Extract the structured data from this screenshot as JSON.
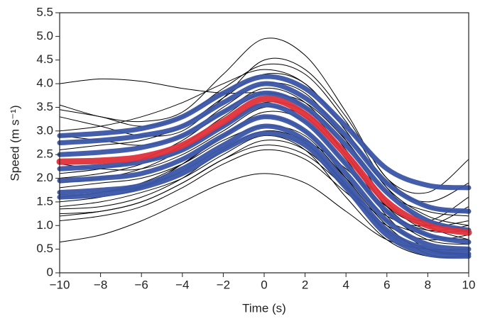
{
  "chart_data": {
    "type": "line",
    "xlabel": "Time (s)",
    "ylabel": "Speed (m s⁻¹)",
    "x": [
      -10,
      -8,
      -6,
      -4,
      -2,
      0,
      2,
      4,
      6,
      8,
      10
    ],
    "xlim": [
      -10,
      10
    ],
    "xticks": [
      {
        "value": -10,
        "label": "−10"
      },
      {
        "value": -8,
        "label": "−8"
      },
      {
        "value": -6,
        "label": "−6"
      },
      {
        "value": -4,
        "label": "−4"
      },
      {
        "value": -2,
        "label": "−2"
      },
      0,
      2,
      4,
      6,
      8,
      10
    ],
    "ylim": [
      0,
      5.5
    ],
    "yticks": [
      0,
      0.5,
      {
        "value": 1,
        "label": "1.0"
      },
      1.5,
      {
        "value": 2,
        "label": "2.0"
      },
      2.5,
      {
        "value": 3,
        "label": "3.0"
      },
      3.5,
      {
        "value": 4,
        "label": "4.0"
      },
      4.5,
      {
        "value": 5,
        "label": "5.0"
      },
      5.5
    ],
    "series": [
      {
        "color": "#000000",
        "values": [
          4.0,
          4.1,
          4.05,
          3.9,
          3.8,
          3.8,
          3.6,
          2.8,
          1.7,
          1.3,
          1.2
        ]
      },
      {
        "color": "#000000",
        "values": [
          0.65,
          0.8,
          1.1,
          1.5,
          1.9,
          2.1,
          1.9,
          1.3,
          0.7,
          0.5,
          0.5
        ]
      },
      {
        "color": "#000000",
        "values": [
          3.55,
          3.3,
          3.2,
          3.4,
          4.2,
          4.95,
          4.6,
          3.4,
          2.0,
          1.7,
          2.4
        ]
      },
      {
        "color": "#000000",
        "values": [
          1.2,
          1.3,
          1.5,
          1.9,
          2.4,
          2.8,
          2.6,
          1.8,
          0.9,
          0.5,
          0.4
        ]
      },
      {
        "color": "#000000",
        "values": [
          3.3,
          3.1,
          2.9,
          3.0,
          3.7,
          4.5,
          4.3,
          3.3,
          2.0,
          1.4,
          1.3
        ]
      },
      {
        "color": "#000000",
        "values": [
          1.5,
          1.6,
          1.8,
          2.3,
          2.9,
          3.3,
          3.0,
          2.0,
          1.0,
          0.4,
          0.35
        ]
      },
      {
        "color": "#000000",
        "values": [
          2.0,
          2.1,
          2.3,
          2.7,
          3.3,
          3.8,
          3.5,
          2.5,
          1.3,
          0.7,
          0.6
        ]
      },
      {
        "color": "#000000",
        "values": [
          1.1,
          1.2,
          1.4,
          1.8,
          2.3,
          2.6,
          2.4,
          1.7,
          1.0,
          0.7,
          0.8
        ]
      },
      {
        "color": "#000000",
        "values": [
          2.6,
          2.7,
          2.8,
          3.1,
          3.7,
          4.2,
          4.0,
          3.0,
          1.8,
          1.2,
          1.0
        ]
      },
      {
        "color": "#000000",
        "values": [
          1.8,
          1.9,
          2.0,
          2.3,
          2.8,
          3.1,
          2.9,
          2.0,
          1.2,
          1.0,
          1.4
        ]
      },
      {
        "color": "#000000",
        "values": [
          3.0,
          3.1,
          3.3,
          3.6,
          4.0,
          4.3,
          4.0,
          3.0,
          1.8,
          1.0,
          0.7
        ]
      },
      {
        "color": "#000000",
        "values": [
          1.35,
          1.4,
          1.6,
          2.0,
          2.6,
          3.0,
          2.8,
          2.2,
          1.4,
          1.1,
          1.6
        ]
      },
      {
        "color": "#000000",
        "values": [
          2.3,
          2.2,
          2.2,
          2.5,
          3.0,
          3.5,
          3.3,
          2.4,
          1.2,
          0.5,
          0.4
        ]
      },
      {
        "color": "#000000",
        "values": [
          1.4,
          1.5,
          1.7,
          2.0,
          2.5,
          2.9,
          2.6,
          1.6,
          0.7,
          0.35,
          0.35
        ]
      },
      {
        "color": "#000000",
        "values": [
          2.9,
          2.8,
          2.7,
          2.9,
          3.5,
          4.0,
          3.8,
          2.8,
          1.5,
          0.9,
          0.9
        ]
      },
      {
        "color": "#000000",
        "values": [
          1.6,
          1.7,
          1.9,
          2.3,
          2.9,
          3.4,
          3.2,
          2.3,
          1.3,
          0.9,
          1.0
        ]
      },
      {
        "color": "#000000",
        "values": [
          3.45,
          3.3,
          3.1,
          3.3,
          3.9,
          4.4,
          4.2,
          3.2,
          1.9,
          1.5,
          1.9
        ]
      },
      {
        "color": "#000000",
        "values": [
          1.25,
          1.3,
          1.5,
          1.9,
          2.4,
          2.7,
          2.5,
          1.8,
          1.1,
          0.8,
          0.7
        ]
      },
      {
        "color": "#000000",
        "values": [
          2.1,
          2.2,
          2.4,
          2.8,
          3.4,
          3.9,
          3.6,
          2.6,
          1.4,
          0.8,
          0.7
        ]
      },
      {
        "color": "#000000",
        "values": [
          1.9,
          2.0,
          2.2,
          2.6,
          3.1,
          3.6,
          3.4,
          2.5,
          1.4,
          1.0,
          1.1
        ]
      },
      {
        "color": "#3a55a6",
        "values": [
          2.9,
          2.95,
          3.05,
          3.3,
          3.8,
          4.15,
          3.9,
          3.1,
          2.2,
          1.85,
          1.8
        ]
      },
      {
        "color": "#3a55a6",
        "values": [
          2.75,
          2.8,
          2.9,
          3.1,
          3.6,
          4.0,
          3.7,
          2.9,
          1.9,
          1.4,
          1.3
        ]
      },
      {
        "color": "#3a55a6",
        "values": [
          2.5,
          2.55,
          2.65,
          2.9,
          3.4,
          3.8,
          3.5,
          2.7,
          1.7,
          1.1,
          0.9
        ]
      },
      {
        "color": "#3a55a6",
        "values": [
          2.2,
          2.25,
          2.35,
          2.6,
          3.1,
          3.55,
          3.2,
          2.3,
          1.3,
          0.8,
          0.65
        ]
      },
      {
        "color": "#3a55a6",
        "values": [
          1.95,
          2.0,
          2.1,
          2.4,
          2.9,
          3.3,
          3.0,
          2.1,
          1.1,
          0.6,
          0.5
        ]
      },
      {
        "color": "#3a55a6",
        "values": [
          1.7,
          1.75,
          1.85,
          2.2,
          2.7,
          3.1,
          2.8,
          1.9,
          0.9,
          0.5,
          0.4
        ]
      },
      {
        "color": "#3a55a6",
        "values": [
          1.6,
          1.65,
          1.8,
          2.1,
          2.6,
          2.95,
          2.7,
          1.8,
          0.8,
          0.4,
          0.35
        ]
      },
      {
        "color": "#e0303a",
        "values": [
          2.35,
          2.37,
          2.45,
          2.7,
          3.2,
          3.68,
          3.35,
          2.5,
          1.5,
          1.0,
          0.85
        ]
      }
    ]
  }
}
